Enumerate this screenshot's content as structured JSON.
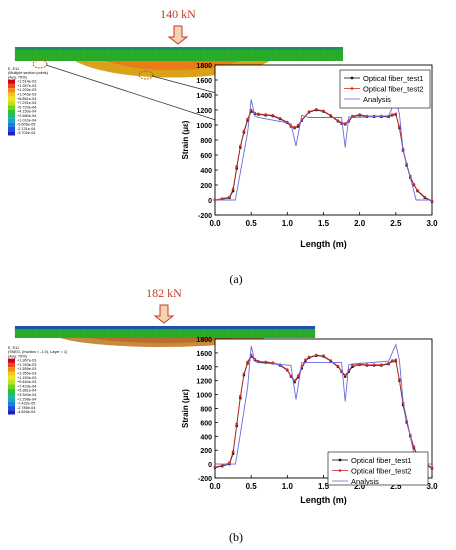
{
  "panels": [
    {
      "id": "a",
      "load_label": "140 kN",
      "caption": "(a)",
      "contour_legend": {
        "title_lines": [
          "E, E11",
          "(Multiple section points)",
          "(Avg: 75%)"
        ],
        "values": [
          "+1.514e-03",
          "+1.357e-03",
          "+1.200e-03",
          "+1.043e-03",
          "+8.861e-04",
          "+7.291e-04",
          "+5.720e-04",
          "+4.150e-04",
          "+2.580e-04",
          "+1.010e-04",
          "-5.606e-05",
          "-2.131e-04",
          "-3.702e-04"
        ],
        "colors": [
          "#d0021b",
          "#e8491c",
          "#f08a1a",
          "#f5c61a",
          "#e8e81c",
          "#b9e31c",
          "#6fd21c",
          "#2ec42e",
          "#1fb87a",
          "#1aa8b8",
          "#1a7fd9",
          "#1a4fe0",
          "#1a22c4"
        ]
      },
      "beam_colors": {
        "base": "#2bb02b",
        "sag": "#d9a21a",
        "sag_core": "#f26b1a",
        "top_edge": "#1d8a8a"
      }
    },
    {
      "id": "b",
      "load_label": "182 kN",
      "caption": "(b)",
      "contour_legend": {
        "title_lines": [
          "E, E11",
          "(SNEG, (fraction = -1.0), Layer = 1)",
          "(Avg: 75%)"
        ],
        "values": [
          "+1.967e-03",
          "+1.763e-03",
          "+1.559e-03",
          "+1.355e-03",
          "+1.150e-03",
          "+9.464e-04",
          "+7.423e-04",
          "+5.381e-04",
          "+3.340e-04",
          "+1.298e-04",
          "-7.432e-05",
          "-2.785e-04",
          "-4.826e-04"
        ],
        "colors": [
          "#d0021b",
          "#e8491c",
          "#f08a1a",
          "#f5c61a",
          "#e8e81c",
          "#b9e31c",
          "#6fd21c",
          "#2ec42e",
          "#1fb87a",
          "#1aa8b8",
          "#1a7fd9",
          "#1a4fe0",
          "#1a22c4"
        ]
      },
      "beam_colors": {
        "base": "#2bb02b",
        "sag": "#c98a3a",
        "sag_core": "#b5602a",
        "top_edge": "#1a3fd0"
      }
    }
  ],
  "chart_data": [
    {
      "type": "line",
      "xlabel": "Length (m)",
      "ylabel": "Strain (με)",
      "xlim": [
        0.0,
        3.0
      ],
      "ylim": [
        -200,
        1800
      ],
      "xticks": [
        "0.0",
        "0.5",
        "1.0",
        "1.5",
        "2.0",
        "2.5",
        "3.0"
      ],
      "yticks": [
        "-200",
        "0",
        "200",
        "400",
        "600",
        "800",
        "1000",
        "1200",
        "1400",
        "1600",
        "1800"
      ],
      "grid": false,
      "legend_position": "top-right",
      "series": [
        {
          "name": "Optical fiber_test1",
          "color": "#111111",
          "marker": "square",
          "x": [
            0.0,
            0.1,
            0.2,
            0.25,
            0.3,
            0.35,
            0.4,
            0.45,
            0.5,
            0.55,
            0.6,
            0.7,
            0.8,
            0.9,
            1.0,
            1.05,
            1.1,
            1.15,
            1.2,
            1.3,
            1.4,
            1.5,
            1.6,
            1.7,
            1.75,
            1.8,
            1.85,
            1.9,
            2.0,
            2.1,
            2.2,
            2.3,
            2.4,
            2.45,
            2.5,
            2.55,
            2.6,
            2.65,
            2.7,
            2.75,
            2.8,
            2.9,
            3.0
          ],
          "y": [
            0,
            10,
            30,
            120,
            420,
            700,
            900,
            1060,
            1180,
            1150,
            1140,
            1130,
            1120,
            1080,
            1030,
            980,
            960,
            980,
            1060,
            1170,
            1200,
            1180,
            1120,
            1050,
            1020,
            1010,
            1050,
            1110,
            1130,
            1110,
            1110,
            1110,
            1110,
            1130,
            1140,
            960,
            660,
            460,
            300,
            200,
            120,
            30,
            -20
          ]
        },
        {
          "name": "Optical fiber_test2",
          "color": "#d62828",
          "marker": "circle",
          "x": [
            0.0,
            0.1,
            0.2,
            0.25,
            0.3,
            0.35,
            0.4,
            0.45,
            0.5,
            0.55,
            0.6,
            0.7,
            0.8,
            0.9,
            1.0,
            1.05,
            1.1,
            1.15,
            1.2,
            1.3,
            1.4,
            1.5,
            1.6,
            1.7,
            1.75,
            1.8,
            1.85,
            1.9,
            2.0,
            2.1,
            2.2,
            2.3,
            2.4,
            2.45,
            2.5,
            2.55,
            2.6,
            2.65,
            2.7,
            2.75,
            2.8,
            2.9,
            3.0
          ],
          "y": [
            0,
            20,
            40,
            150,
            450,
            720,
            920,
            1080,
            1200,
            1160,
            1150,
            1140,
            1130,
            1090,
            1040,
            990,
            970,
            1000,
            1070,
            1180,
            1210,
            1190,
            1130,
            1060,
            1030,
            1020,
            1060,
            1120,
            1140,
            1120,
            1120,
            1120,
            1120,
            1140,
            1150,
            980,
            680,
            480,
            320,
            210,
            130,
            40,
            -10
          ]
        },
        {
          "name": "Analysis",
          "color": "#6a6ae0",
          "marker": "none",
          "x": [
            0.0,
            0.28,
            0.3,
            0.45,
            0.5,
            0.55,
            0.6,
            1.05,
            1.12,
            1.2,
            1.3,
            1.75,
            1.8,
            1.85,
            1.9,
            2.4,
            2.5,
            2.55,
            2.6,
            2.7,
            2.78,
            2.8,
            3.0
          ],
          "y": [
            0,
            0,
            100,
            900,
            1340,
            1120,
            1100,
            1020,
            720,
            1130,
            1100,
            1100,
            700,
            1110,
            1100,
            1120,
            1340,
            1150,
            660,
            300,
            0,
            0,
            0
          ]
        }
      ]
    },
    {
      "type": "line",
      "xlabel": "Length (m)",
      "ylabel": "Strain (με)",
      "xlim": [
        0.0,
        3.0
      ],
      "ylim": [
        -200,
        1800
      ],
      "xticks": [
        "0.0",
        "0.5",
        "1.0",
        "1.5",
        "2.0",
        "2.5",
        "3.0"
      ],
      "yticks": [
        "-200",
        "0",
        "200",
        "400",
        "600",
        "800",
        "1000",
        "1200",
        "1400",
        "1600",
        "1800"
      ],
      "grid": false,
      "legend_position": "bottom-right",
      "series": [
        {
          "name": "Optical fiber_test1",
          "color": "#111111",
          "marker": "square",
          "x": [
            0.0,
            0.1,
            0.2,
            0.25,
            0.3,
            0.35,
            0.4,
            0.45,
            0.5,
            0.55,
            0.6,
            0.7,
            0.8,
            0.9,
            1.0,
            1.05,
            1.1,
            1.15,
            1.2,
            1.25,
            1.3,
            1.4,
            1.5,
            1.6,
            1.7,
            1.75,
            1.8,
            1.85,
            1.9,
            2.0,
            2.1,
            2.2,
            2.3,
            2.4,
            2.45,
            2.5,
            2.55,
            2.6,
            2.65,
            2.7,
            2.75,
            2.8,
            2.9,
            3.0
          ],
          "y": [
            -50,
            -30,
            0,
            150,
            550,
            950,
            1280,
            1450,
            1550,
            1500,
            1470,
            1460,
            1450,
            1420,
            1350,
            1260,
            1180,
            1250,
            1380,
            1480,
            1530,
            1560,
            1550,
            1480,
            1400,
            1330,
            1260,
            1330,
            1400,
            1430,
            1420,
            1420,
            1420,
            1440,
            1480,
            1480,
            1200,
            850,
            600,
            400,
            230,
            120,
            0,
            -60
          ]
        },
        {
          "name": "Optical fiber_test2",
          "color": "#d62828",
          "marker": "circle",
          "x": [
            0.0,
            0.1,
            0.2,
            0.25,
            0.3,
            0.35,
            0.4,
            0.45,
            0.5,
            0.55,
            0.6,
            0.7,
            0.8,
            0.9,
            1.0,
            1.05,
            1.1,
            1.15,
            1.2,
            1.25,
            1.3,
            1.4,
            1.5,
            1.6,
            1.7,
            1.75,
            1.8,
            1.85,
            1.9,
            2.0,
            2.1,
            2.2,
            2.3,
            2.4,
            2.45,
            2.5,
            2.55,
            2.6,
            2.65,
            2.7,
            2.75,
            2.8,
            2.9,
            3.0
          ],
          "y": [
            -40,
            -20,
            20,
            180,
            580,
            980,
            1300,
            1470,
            1570,
            1510,
            1480,
            1470,
            1460,
            1430,
            1360,
            1270,
            1200,
            1270,
            1400,
            1500,
            1540,
            1570,
            1560,
            1490,
            1410,
            1340,
            1280,
            1350,
            1420,
            1440,
            1430,
            1430,
            1430,
            1450,
            1490,
            1500,
            1220,
            880,
            620,
            420,
            250,
            130,
            10,
            -50
          ]
        },
        {
          "name": "Analysis",
          "color": "#6a6ae0",
          "marker": "none",
          "x": [
            0.0,
            0.28,
            0.3,
            0.45,
            0.5,
            0.55,
            0.6,
            1.05,
            1.12,
            1.2,
            1.3,
            1.75,
            1.8,
            1.85,
            1.9,
            2.4,
            2.5,
            2.55,
            2.6,
            2.7,
            2.78,
            2.8,
            3.0
          ],
          "y": [
            0,
            0,
            100,
            1100,
            1700,
            1480,
            1460,
            1420,
            930,
            1460,
            1460,
            1460,
            900,
            1430,
            1440,
            1480,
            1720,
            1500,
            900,
            400,
            0,
            0,
            0
          ]
        }
      ]
    }
  ]
}
